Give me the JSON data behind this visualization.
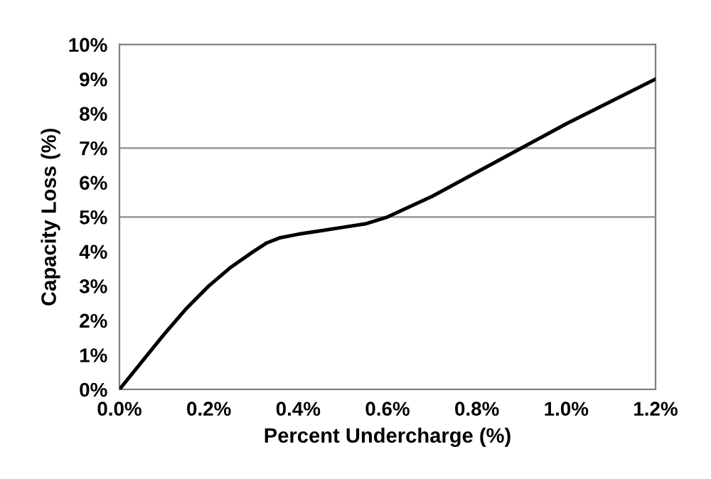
{
  "chart_data": {
    "type": "line",
    "xlabel": "Percent Undercharge (%)",
    "ylabel": "Capacity Loss (%)",
    "series": [
      {
        "color": "#000000",
        "x": [
          0,
          0.05,
          0.1,
          0.15,
          0.2,
          0.25,
          0.3,
          0.33,
          0.36,
          0.4,
          0.45,
          0.5,
          0.55,
          0.6,
          0.65,
          0.7,
          0.8,
          0.9,
          1.0,
          1.1,
          1.2
        ],
        "values": [
          0,
          0.8,
          1.6,
          2.35,
          3.0,
          3.55,
          4.0,
          4.25,
          4.4,
          4.5,
          4.6,
          4.7,
          4.8,
          5.0,
          5.3,
          5.6,
          6.3,
          7.0,
          7.7,
          8.35,
          9.0
        ]
      }
    ],
    "xlim": [
      0,
      1.2
    ],
    "ylim": [
      0,
      10
    ],
    "xticks": [
      {
        "value": 0,
        "label": "0.0%"
      },
      {
        "value": 0.2,
        "label": "0.2%"
      },
      {
        "value": 0.4,
        "label": "0.4%"
      },
      {
        "value": 0.6,
        "label": "0.6%"
      },
      {
        "value": 0.8,
        "label": "0.8%"
      },
      {
        "value": 1.0,
        "label": "1.0%"
      },
      {
        "value": 1.2,
        "label": "1.2%"
      }
    ],
    "yticks": [
      {
        "value": 0,
        "label": "0%"
      },
      {
        "value": 1,
        "label": "1%"
      },
      {
        "value": 2,
        "label": "2%"
      },
      {
        "value": 3,
        "label": "3%"
      },
      {
        "value": 4,
        "label": "4%"
      },
      {
        "value": 5,
        "label": "5%"
      },
      {
        "value": 6,
        "label": "6%"
      },
      {
        "value": 7,
        "label": "7%"
      },
      {
        "value": 8,
        "label": "8%"
      },
      {
        "value": 9,
        "label": "9%"
      },
      {
        "value": 10,
        "label": "10%"
      }
    ],
    "ref_lines": [
      {
        "axis": "y",
        "value": 5,
        "color": "#a0a0a0"
      },
      {
        "axis": "y",
        "value": 7,
        "color": "#a0a0a0"
      }
    ],
    "marker": "none",
    "line_style": "solid",
    "grid": false,
    "legend": false
  }
}
